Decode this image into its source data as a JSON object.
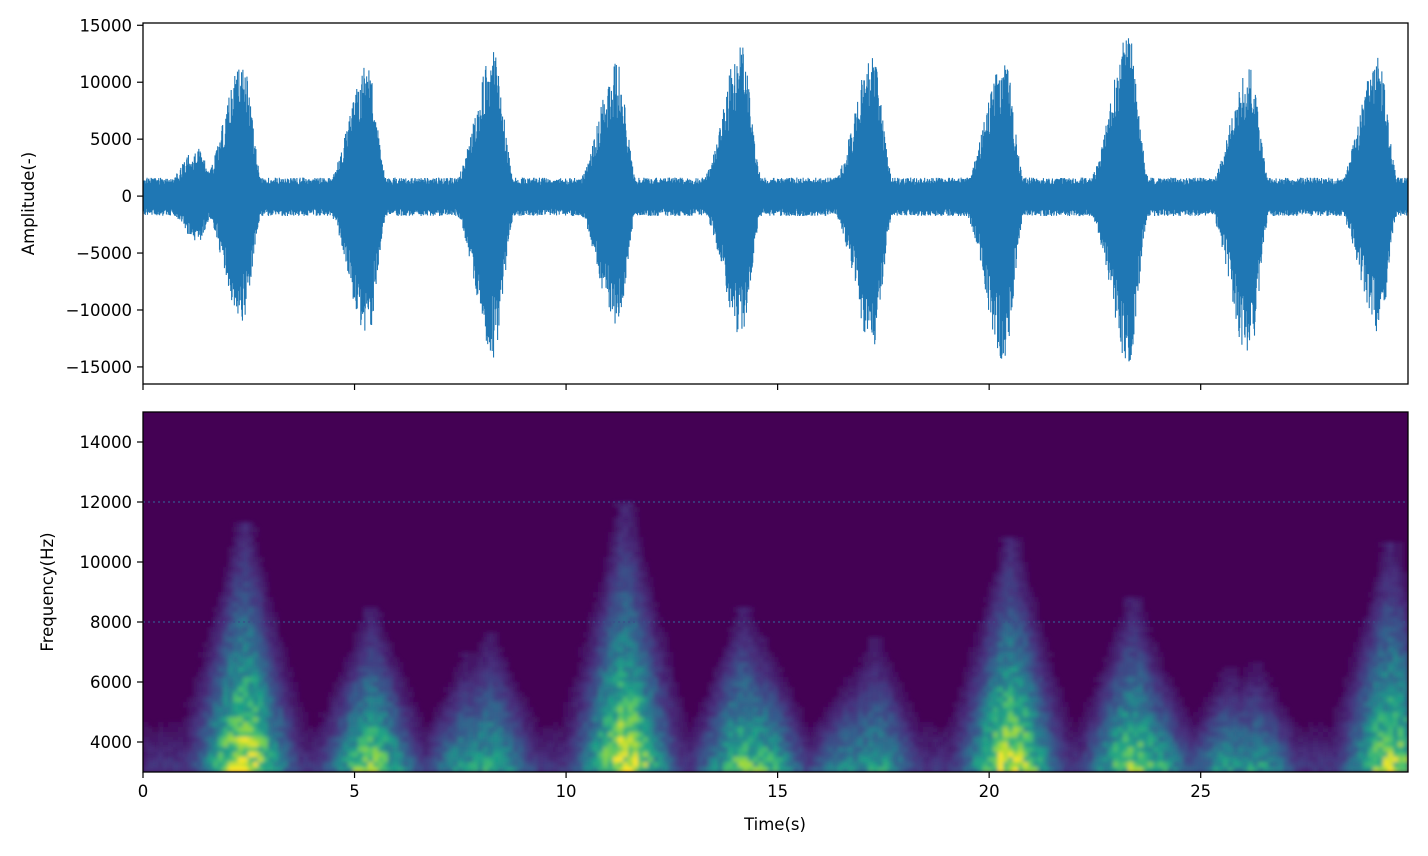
{
  "chart_data": [
    {
      "type": "line",
      "xlabel": "",
      "ylabel": "Amplitude(-)",
      "xlim": [
        0,
        29.9
      ],
      "ylim": [
        -16500,
        15200
      ],
      "y_ticks": [
        {
          "value": 15000,
          "label": "15000"
        },
        {
          "value": 10000,
          "label": "10000"
        },
        {
          "value": 5000,
          "label": "5000"
        },
        {
          "value": 0,
          "label": "0"
        },
        {
          "value": -5000,
          "label": "−5000"
        },
        {
          "value": -10000,
          "label": "−10000"
        },
        {
          "value": -15000,
          "label": "−15000"
        }
      ],
      "x_ticks": [
        0,
        5,
        10,
        15,
        20,
        25
      ],
      "series_color": "#1f77b4",
      "baseline_amplitude": 1300,
      "bursts": [
        {
          "t": 1.3,
          "pos": 4200,
          "neg": -4000
        },
        {
          "t": 2.35,
          "pos": 11900,
          "neg": -11000
        },
        {
          "t": 5.3,
          "pos": 11700,
          "neg": -12700
        },
        {
          "t": 8.3,
          "pos": 12800,
          "neg": -14300
        },
        {
          "t": 11.2,
          "pos": 11700,
          "neg": -11600
        },
        {
          "t": 14.15,
          "pos": 13500,
          "neg": -12500
        },
        {
          "t": 17.25,
          "pos": 12500,
          "neg": -13500
        },
        {
          "t": 20.35,
          "pos": 12500,
          "neg": -14600
        },
        {
          "t": 23.3,
          "pos": 14200,
          "neg": -14800
        },
        {
          "t": 26.15,
          "pos": 11500,
          "neg": -14600
        },
        {
          "t": 29.2,
          "pos": 12400,
          "neg": -12300
        }
      ]
    },
    {
      "type": "heatmap",
      "xlabel": "Time(s)",
      "ylabel": "Frequency(Hz)",
      "xlim": [
        0,
        29.9
      ],
      "ylim": [
        3000,
        15000
      ],
      "x_ticks": [
        {
          "value": 0,
          "label": "0"
        },
        {
          "value": 5,
          "label": "5"
        },
        {
          "value": 10,
          "label": "10"
        },
        {
          "value": 15,
          "label": "15"
        },
        {
          "value": 20,
          "label": "20"
        },
        {
          "value": 25,
          "label": "25"
        }
      ],
      "y_ticks": [
        {
          "value": 4000,
          "label": "4000"
        },
        {
          "value": 6000,
          "label": "6000"
        },
        {
          "value": 8000,
          "label": "8000"
        },
        {
          "value": 10000,
          "label": "10000"
        },
        {
          "value": 12000,
          "label": "12000"
        },
        {
          "value": 14000,
          "label": "14000"
        }
      ],
      "colormap": [
        "#440154",
        "#46327e",
        "#365c8d",
        "#277f8e",
        "#1fa187",
        "#4ac16d",
        "#a0da39",
        "#fde725"
      ],
      "hum_lines_hz": [
        12000,
        8000
      ],
      "calls": [
        {
          "t": 2.4,
          "top": 11000,
          "strength": 1.0
        },
        {
          "t": 5.4,
          "top": 8200,
          "strength": 0.85
        },
        {
          "t": 7.7,
          "top": 6800,
          "strength": 0.6
        },
        {
          "t": 8.2,
          "top": 7500,
          "strength": 0.65
        },
        {
          "t": 11.4,
          "top": 11500,
          "strength": 1.0
        },
        {
          "t": 14.2,
          "top": 8200,
          "strength": 0.8
        },
        {
          "t": 14.6,
          "top": 7300,
          "strength": 0.75
        },
        {
          "t": 16.7,
          "top": 6000,
          "strength": 0.55
        },
        {
          "t": 17.3,
          "top": 7300,
          "strength": 0.6
        },
        {
          "t": 20.5,
          "top": 10500,
          "strength": 1.0
        },
        {
          "t": 23.4,
          "top": 8500,
          "strength": 0.85
        },
        {
          "t": 23.8,
          "top": 7000,
          "strength": 0.7
        },
        {
          "t": 25.7,
          "top": 6400,
          "strength": 0.6
        },
        {
          "t": 26.3,
          "top": 6500,
          "strength": 0.6
        },
        {
          "t": 29.5,
          "top": 10300,
          "strength": 0.9
        }
      ]
    }
  ]
}
